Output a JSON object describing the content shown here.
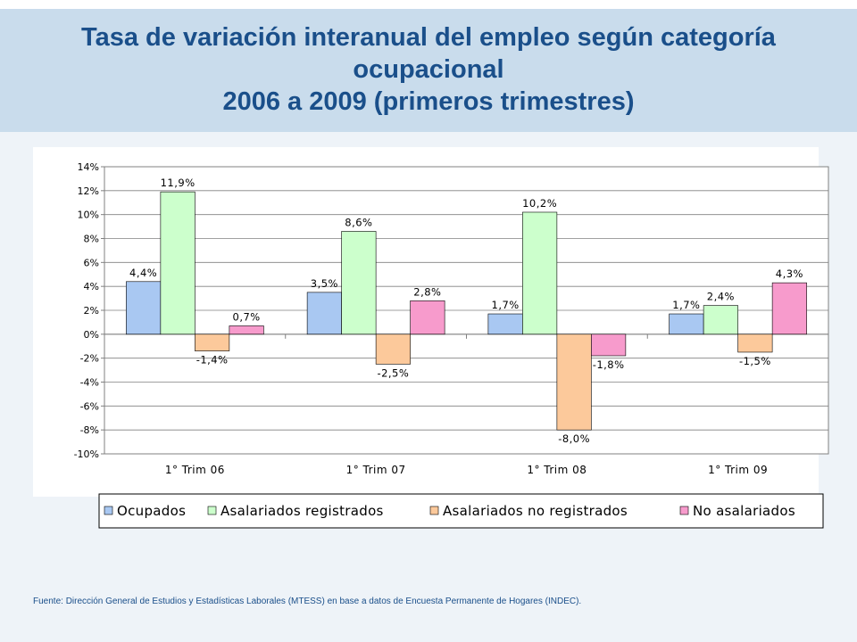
{
  "title": {
    "line1": "Tasa de variación interanual del empleo según categoría",
    "line2": "ocupacional",
    "line3": "2006 a 2009 (primeros trimestres)"
  },
  "source": "Fuente: Dirección General de Estudios y Estadísticas Laborales (MTESS) en base a datos de Encuesta Permanente de Hogares (INDEC).",
  "chart_data": {
    "type": "bar",
    "categories": [
      "1° Trim 06",
      "1° Trim 07",
      "1° Trim 08",
      "1° Trim 09"
    ],
    "series": [
      {
        "name": "Ocupados",
        "color": "#a9c8f2",
        "values": [
          4.4,
          3.5,
          1.7,
          1.7
        ],
        "labels": [
          "4,4%",
          "3,5%",
          "1,7%",
          "1,7%"
        ]
      },
      {
        "name": "Asalariados registrados",
        "color": "#ccffcc",
        "values": [
          11.9,
          8.6,
          10.2,
          2.4
        ],
        "labels": [
          "11,9%",
          "8,6%",
          "10,2%",
          "2,4%"
        ]
      },
      {
        "name": "Asalariados no registrados",
        "color": "#fcc99b",
        "values": [
          -1.4,
          -2.5,
          -8.0,
          -1.5
        ],
        "labels": [
          "-1,4%",
          "-2,5%",
          "-8,0%",
          "-1,5%"
        ]
      },
      {
        "name": "No asalariados",
        "color": "#f79bcc",
        "values": [
          0.7,
          2.8,
          -1.8,
          4.3
        ],
        "labels": [
          "0,7%",
          "2,8%",
          "-1,8%",
          "4,3%"
        ]
      }
    ],
    "yticks": [
      "14%",
      "12%",
      "10%",
      "8%",
      "6%",
      "4%",
      "2%",
      "0%",
      "-2%",
      "-4%",
      "-6%",
      "-8%",
      "-10%"
    ],
    "ylim": [
      -10,
      14
    ],
    "grid": true,
    "legend": "bottom"
  }
}
